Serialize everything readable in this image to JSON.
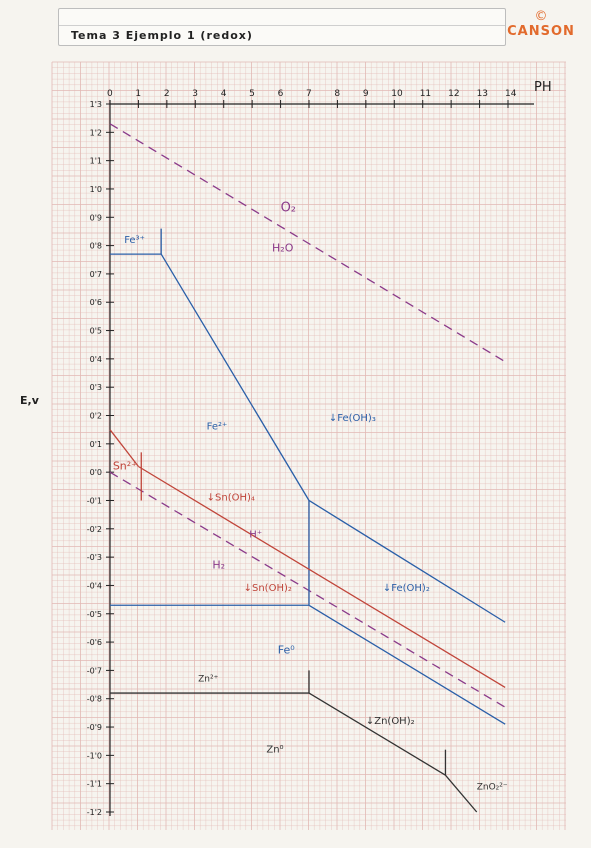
{
  "header": {
    "title": "Tema 3   Ejemplo 1  (redox)"
  },
  "brand": {
    "name": "CANSON",
    "mark": "©"
  },
  "chart_data": {
    "type": "line",
    "xlabel": "PH",
    "ylabel": "E,v",
    "xlim": [
      0,
      14
    ],
    "ylim": [
      -1.2,
      1.3
    ],
    "x_ticks": [
      "0",
      "1",
      "2",
      "3",
      "4",
      "5",
      "6",
      "7",
      "8",
      "9",
      "10",
      "11",
      "12",
      "13",
      "14"
    ],
    "y_ticks": [
      {
        "v": 1.3,
        "t": "1'3"
      },
      {
        "v": 1.2,
        "t": "1'2"
      },
      {
        "v": 1.1,
        "t": "1'1"
      },
      {
        "v": 1.0,
        "t": "1'0"
      },
      {
        "v": 0.9,
        "t": "0'9"
      },
      {
        "v": 0.8,
        "t": "0'8"
      },
      {
        "v": 0.7,
        "t": "0'7"
      },
      {
        "v": 0.6,
        "t": "0'6"
      },
      {
        "v": 0.5,
        "t": "0'5"
      },
      {
        "v": 0.4,
        "t": "0'4"
      },
      {
        "v": 0.3,
        "t": "0'3"
      },
      {
        "v": 0.2,
        "t": "0'2"
      },
      {
        "v": 0.1,
        "t": "0'1"
      },
      {
        "v": 0.0,
        "t": "0'0"
      },
      {
        "v": -0.1,
        "t": "-0'1"
      },
      {
        "v": -0.2,
        "t": "-0'2"
      },
      {
        "v": -0.3,
        "t": "-0'3"
      },
      {
        "v": -0.4,
        "t": "-0'4"
      },
      {
        "v": -0.5,
        "t": "-0'5"
      },
      {
        "v": -0.6,
        "t": "-0'6"
      },
      {
        "v": -0.7,
        "t": "-0'7"
      },
      {
        "v": -0.8,
        "t": "-0'8"
      },
      {
        "v": -0.9,
        "t": "-0'9"
      },
      {
        "v": -1.0,
        "t": "-1'0"
      },
      {
        "v": -1.1,
        "t": "-1'1"
      },
      {
        "v": -1.2,
        "t": "-1'2"
      }
    ],
    "colors": {
      "water": "#8a3a8a",
      "iron": "#2a5fa8",
      "tin": "#c0453a",
      "zinc": "#333333",
      "grid": "#e2b9b4"
    },
    "series": [
      {
        "id": "o2-h2o",
        "color": "water",
        "dashed": true,
        "points": [
          [
            0,
            1.23
          ],
          [
            13.9,
            0.39
          ]
        ]
      },
      {
        "id": "h-h2",
        "color": "water",
        "dashed": true,
        "points": [
          [
            0,
            0.0
          ],
          [
            13.9,
            -0.83
          ]
        ]
      },
      {
        "id": "fe3-fe2",
        "color": "iron",
        "points": [
          [
            0,
            0.77
          ],
          [
            1.8,
            0.77
          ]
        ]
      },
      {
        "id": "fe3-tick",
        "color": "iron",
        "points": [
          [
            1.8,
            0.77
          ],
          [
            1.8,
            0.86
          ]
        ]
      },
      {
        "id": "feoh3-fe2",
        "color": "iron",
        "points": [
          [
            1.8,
            0.77
          ],
          [
            7,
            -0.1
          ]
        ]
      },
      {
        "id": "feoh3-feoh2",
        "color": "iron",
        "points": [
          [
            7,
            -0.1
          ],
          [
            13.9,
            -0.53
          ]
        ]
      },
      {
        "id": "fe-vertical",
        "color": "iron",
        "points": [
          [
            7,
            -0.1
          ],
          [
            7,
            -0.47
          ]
        ]
      },
      {
        "id": "fe2-fe",
        "color": "iron",
        "points": [
          [
            0,
            -0.47
          ],
          [
            7,
            -0.47
          ]
        ]
      },
      {
        "id": "feoh2-fe",
        "color": "iron",
        "points": [
          [
            7,
            -0.47
          ],
          [
            13.9,
            -0.89
          ]
        ]
      },
      {
        "id": "sn-upper",
        "color": "tin",
        "points": [
          [
            0,
            0.15
          ],
          [
            1.0,
            0.02
          ]
        ]
      },
      {
        "id": "sn-tick",
        "color": "tin",
        "points": [
          [
            1.1,
            0.07
          ],
          [
            1.1,
            -0.1
          ]
        ]
      },
      {
        "id": "snoh4-snoh2",
        "color": "tin",
        "points": [
          [
            1.0,
            0.02
          ],
          [
            13.9,
            -0.76
          ]
        ]
      },
      {
        "id": "zn2-zn",
        "color": "zinc",
        "points": [
          [
            0,
            -0.78
          ],
          [
            7,
            -0.78
          ]
        ]
      },
      {
        "id": "zn-tick",
        "color": "zinc",
        "points": [
          [
            7,
            -0.78
          ],
          [
            7,
            -0.7
          ]
        ]
      },
      {
        "id": "znoh2-zn",
        "color": "zinc",
        "points": [
          [
            7,
            -0.78
          ],
          [
            11.8,
            -1.07
          ]
        ]
      },
      {
        "id": "zn-tick2",
        "color": "zinc",
        "points": [
          [
            11.8,
            -1.07
          ],
          [
            11.8,
            -0.98
          ]
        ]
      },
      {
        "id": "zno2-zn",
        "color": "zinc",
        "points": [
          [
            11.8,
            -1.07
          ],
          [
            12.9,
            -1.2
          ]
        ]
      }
    ],
    "annotations": [
      {
        "text": "O₂",
        "x": 6.0,
        "y": 0.92,
        "color": "water",
        "size": 13
      },
      {
        "text": "H₂O",
        "x": 5.7,
        "y": 0.78,
        "color": "water",
        "size": 11
      },
      {
        "text": "Fe³⁺",
        "x": 0.5,
        "y": 0.81,
        "color": "iron",
        "size": 10
      },
      {
        "text": "Fe²⁺",
        "x": 3.4,
        "y": 0.15,
        "color": "iron",
        "size": 10
      },
      {
        "text": "↓Fe(OH)₃",
        "x": 7.7,
        "y": 0.18,
        "color": "iron",
        "size": 10
      },
      {
        "text": "↓Fe(OH)₂",
        "x": 9.6,
        "y": -0.42,
        "color": "iron",
        "size": 10
      },
      {
        "text": "Fe⁰",
        "x": 5.9,
        "y": -0.64,
        "color": "iron",
        "size": 11
      },
      {
        "text": "Sn²⁺",
        "x": 0.1,
        "y": 0.01,
        "color": "tin",
        "size": 11
      },
      {
        "text": "↓Sn(OH)₄",
        "x": 3.4,
        "y": -0.1,
        "color": "tin",
        "size": 10
      },
      {
        "text": "↓Sn(OH)₂",
        "x": 4.7,
        "y": -0.42,
        "color": "tin",
        "size": 10
      },
      {
        "text": "H⁺",
        "x": 4.9,
        "y": -0.23,
        "color": "water",
        "size": 10
      },
      {
        "text": "H₂",
        "x": 3.6,
        "y": -0.34,
        "color": "water",
        "size": 11
      },
      {
        "text": "Zn²⁺",
        "x": 3.1,
        "y": -0.74,
        "color": "zinc",
        "size": 9
      },
      {
        "text": "↓Zn(OH)₂",
        "x": 9.0,
        "y": -0.89,
        "color": "zinc",
        "size": 10
      },
      {
        "text": "Zn⁰",
        "x": 5.5,
        "y": -0.99,
        "color": "zinc",
        "size": 10
      },
      {
        "text": "ZnO₂²⁻",
        "x": 12.9,
        "y": -1.12,
        "color": "zinc",
        "size": 9
      }
    ]
  }
}
